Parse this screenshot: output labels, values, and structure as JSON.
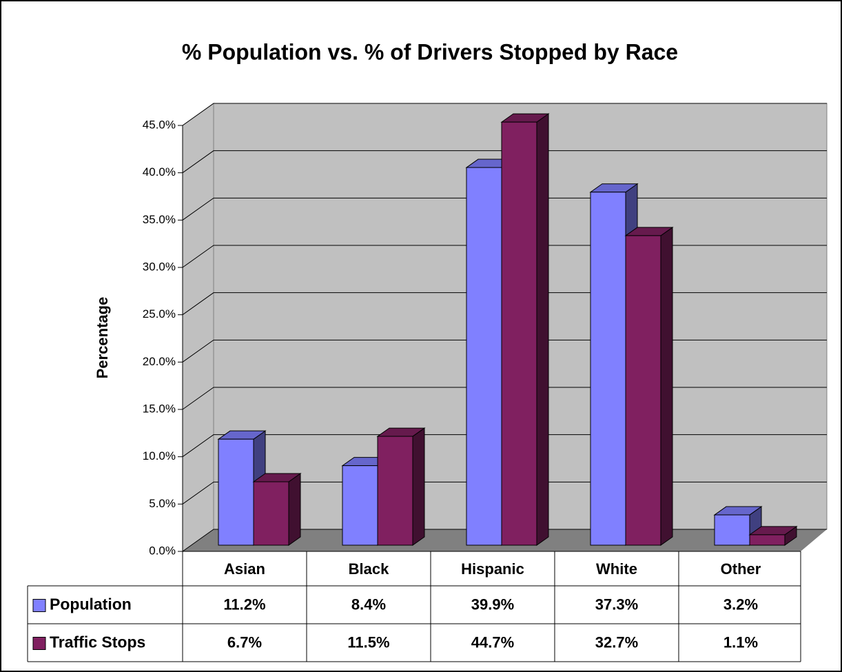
{
  "chart_data": {
    "type": "bar3d",
    "title": "% Population vs. % of Drivers Stopped by Race",
    "y_label": "Percentage",
    "categories": [
      "Asian",
      "Black",
      "Hispanic",
      "White",
      "Other"
    ],
    "series": [
      {
        "name": "Population",
        "color": "#8080ff",
        "values": [
          11.2,
          8.4,
          39.9,
          37.3,
          3.2
        ],
        "value_labels": [
          "11.2%",
          "8.4%",
          "39.9%",
          "37.3%",
          "3.2%"
        ]
      },
      {
        "name": "Traffic Stops",
        "color": "#802060",
        "values": [
          6.7,
          11.5,
          44.7,
          32.7,
          1.1
        ],
        "value_labels": [
          "6.7%",
          "11.5%",
          "44.7%",
          "32.7%",
          "1.1%"
        ]
      }
    ],
    "ylim": [
      0,
      45
    ],
    "yticks": [
      {
        "value": 0,
        "label": "0.0%"
      },
      {
        "value": 5,
        "label": "5.0%"
      },
      {
        "value": 10,
        "label": "10.0%"
      },
      {
        "value": 15,
        "label": "15.0%"
      },
      {
        "value": 20,
        "label": "20.0%"
      },
      {
        "value": 25,
        "label": "25.0%"
      },
      {
        "value": 30,
        "label": "30.0%"
      },
      {
        "value": 35,
        "label": "35.0%"
      },
      {
        "value": 40,
        "label": "40.0%"
      },
      {
        "value": 45,
        "label": "45.0%"
      }
    ],
    "grid": true
  }
}
